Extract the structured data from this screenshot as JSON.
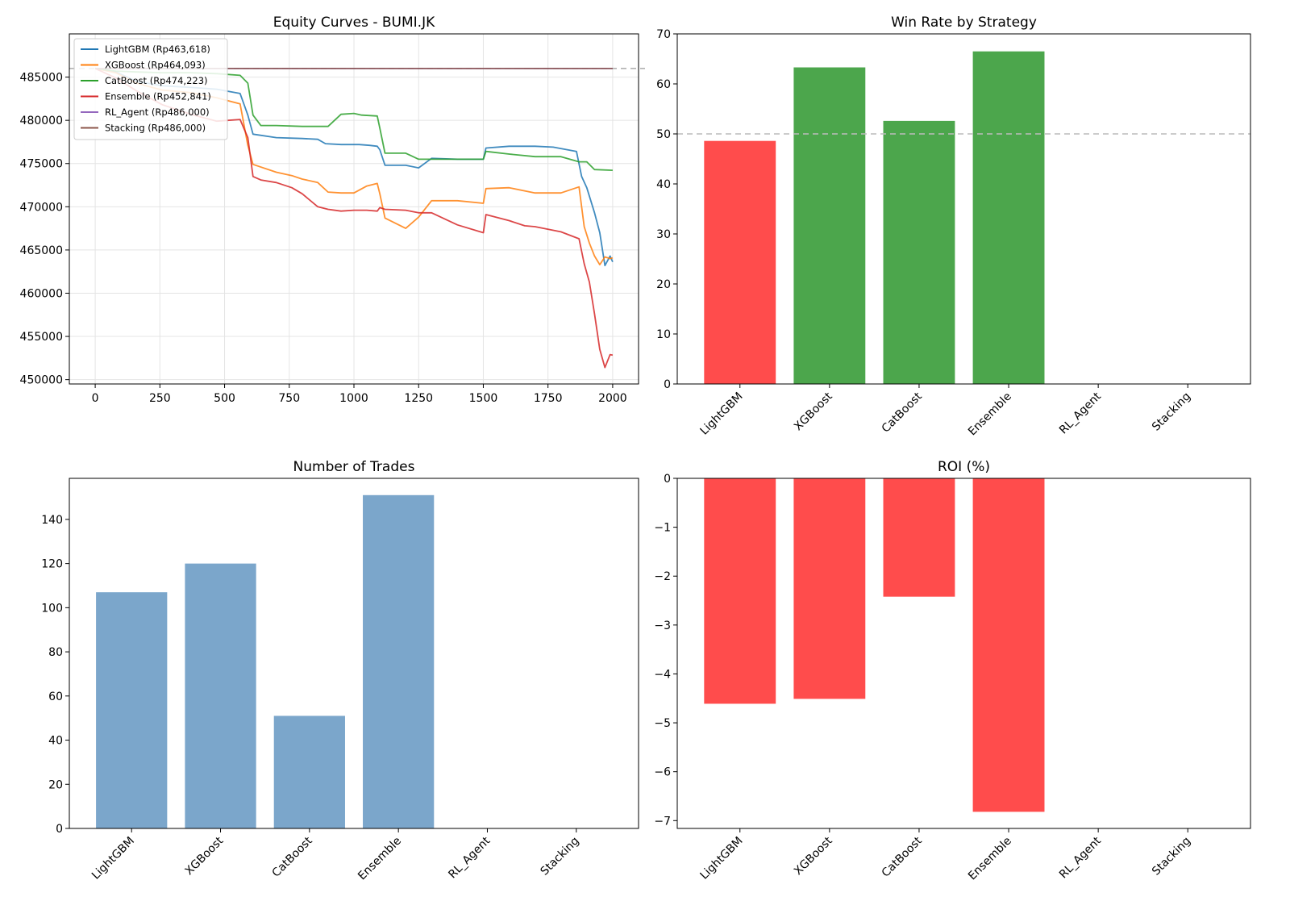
{
  "chart_data": [
    {
      "type": "line",
      "title": "Equity Curves - BUMI.JK",
      "xlabel": "",
      "ylabel": "",
      "xlim": [
        -100,
        2100
      ],
      "ylim": [
        449500,
        490000
      ],
      "xticks": [
        0,
        250,
        500,
        750,
        1000,
        1250,
        1500,
        1750,
        2000
      ],
      "yticks": [
        450000,
        455000,
        460000,
        465000,
        470000,
        475000,
        480000,
        485000
      ],
      "grid": true,
      "legend_position": "upper-left",
      "reference_line": {
        "y": 486000,
        "style": "dashed",
        "color": "#aaaaaa"
      },
      "series": [
        {
          "name": "LightGBM (Rp463,618)",
          "color": "#1f77b4",
          "points": [
            [
              0,
              486000
            ],
            [
              80,
              485600
            ],
            [
              160,
              484500
            ],
            [
              260,
              484000
            ],
            [
              370,
              483800
            ],
            [
              470,
              483600
            ],
            [
              560,
              483100
            ],
            [
              590,
              480600
            ],
            [
              610,
              478400
            ],
            [
              700,
              478000
            ],
            [
              800,
              477900
            ],
            [
              860,
              477800
            ],
            [
              890,
              477300
            ],
            [
              950,
              477200
            ],
            [
              1020,
              477200
            ],
            [
              1060,
              477100
            ],
            [
              1090,
              477000
            ],
            [
              1100,
              476600
            ],
            [
              1120,
              474800
            ],
            [
              1200,
              474800
            ],
            [
              1250,
              474500
            ],
            [
              1300,
              475600
            ],
            [
              1400,
              475500
            ],
            [
              1500,
              475500
            ],
            [
              1510,
              476800
            ],
            [
              1600,
              477000
            ],
            [
              1700,
              477000
            ],
            [
              1770,
              476900
            ],
            [
              1860,
              476400
            ],
            [
              1880,
              473500
            ],
            [
              1900,
              472200
            ],
            [
              1930,
              469300
            ],
            [
              1950,
              467000
            ],
            [
              1970,
              463200
            ],
            [
              1990,
              464300
            ],
            [
              2000,
              463618
            ]
          ]
        },
        {
          "name": "XGBoost (Rp464,093)",
          "color": "#ff7f0e",
          "points": [
            [
              0,
              486000
            ],
            [
              80,
              485500
            ],
            [
              160,
              484300
            ],
            [
              260,
              483500
            ],
            [
              370,
              483200
            ],
            [
              470,
              482600
            ],
            [
              560,
              481900
            ],
            [
              590,
              477100
            ],
            [
              610,
              474900
            ],
            [
              700,
              474000
            ],
            [
              760,
              473600
            ],
            [
              800,
              473200
            ],
            [
              860,
              472800
            ],
            [
              900,
              471700
            ],
            [
              950,
              471600
            ],
            [
              1000,
              471600
            ],
            [
              1050,
              472400
            ],
            [
              1090,
              472700
            ],
            [
              1100,
              471500
            ],
            [
              1120,
              468700
            ],
            [
              1200,
              467500
            ],
            [
              1250,
              468800
            ],
            [
              1300,
              470700
            ],
            [
              1400,
              470700
            ],
            [
              1500,
              470400
            ],
            [
              1510,
              472100
            ],
            [
              1600,
              472200
            ],
            [
              1700,
              471600
            ],
            [
              1800,
              471600
            ],
            [
              1870,
              472300
            ],
            [
              1890,
              467700
            ],
            [
              1910,
              465800
            ],
            [
              1930,
              464300
            ],
            [
              1950,
              463300
            ],
            [
              1970,
              464200
            ],
            [
              1990,
              464000
            ],
            [
              2000,
              464093
            ]
          ]
        },
        {
          "name": "CatBoost (Rp474,223)",
          "color": "#2ca02c",
          "points": [
            [
              0,
              486000
            ],
            [
              80,
              485700
            ],
            [
              160,
              485600
            ],
            [
              260,
              485500
            ],
            [
              370,
              485500
            ],
            [
              470,
              485400
            ],
            [
              560,
              485200
            ],
            [
              590,
              484300
            ],
            [
              610,
              480600
            ],
            [
              640,
              479400
            ],
            [
              700,
              479400
            ],
            [
              800,
              479300
            ],
            [
              900,
              479300
            ],
            [
              950,
              480700
            ],
            [
              1000,
              480800
            ],
            [
              1030,
              480600
            ],
            [
              1090,
              480500
            ],
            [
              1100,
              479100
            ],
            [
              1120,
              476200
            ],
            [
              1200,
              476200
            ],
            [
              1250,
              475500
            ],
            [
              1300,
              475500
            ],
            [
              1400,
              475500
            ],
            [
              1500,
              475500
            ],
            [
              1510,
              476400
            ],
            [
              1600,
              476100
            ],
            [
              1700,
              475800
            ],
            [
              1800,
              475800
            ],
            [
              1870,
              475200
            ],
            [
              1900,
              475200
            ],
            [
              1930,
              474300
            ],
            [
              2000,
              474223
            ]
          ]
        },
        {
          "name": "Ensemble (Rp452,841)",
          "color": "#d62728",
          "points": [
            [
              0,
              486000
            ],
            [
              80,
              484900
            ],
            [
              160,
              483400
            ],
            [
              260,
              481800
            ],
            [
              370,
              480700
            ],
            [
              470,
              479900
            ],
            [
              560,
              480100
            ],
            [
              590,
              478000
            ],
            [
              610,
              473500
            ],
            [
              640,
              473100
            ],
            [
              700,
              472800
            ],
            [
              760,
              472200
            ],
            [
              800,
              471500
            ],
            [
              860,
              470000
            ],
            [
              900,
              469700
            ],
            [
              950,
              469500
            ],
            [
              1000,
              469600
            ],
            [
              1050,
              469600
            ],
            [
              1090,
              469500
            ],
            [
              1100,
              469900
            ],
            [
              1120,
              469700
            ],
            [
              1200,
              469600
            ],
            [
              1250,
              469300
            ],
            [
              1300,
              469300
            ],
            [
              1400,
              467900
            ],
            [
              1500,
              467000
            ],
            [
              1510,
              469100
            ],
            [
              1600,
              468400
            ],
            [
              1660,
              467800
            ],
            [
              1700,
              467700
            ],
            [
              1800,
              467100
            ],
            [
              1870,
              466300
            ],
            [
              1890,
              463400
            ],
            [
              1910,
              461300
            ],
            [
              1930,
              457600
            ],
            [
              1950,
              453500
            ],
            [
              1970,
              451400
            ],
            [
              1990,
              452900
            ],
            [
              2000,
              452841
            ]
          ]
        },
        {
          "name": "RL_Agent (Rp486,000)",
          "color": "#9467bd",
          "points": [
            [
              0,
              486000
            ],
            [
              2000,
              486000
            ]
          ]
        },
        {
          "name": "Stacking (Rp486,000)",
          "color": "#8c564b",
          "points": [
            [
              0,
              486000
            ],
            [
              2000,
              486000
            ]
          ]
        }
      ]
    },
    {
      "type": "bar",
      "title": "Win Rate by Strategy",
      "xlabel": "",
      "ylabel": "",
      "categories": [
        "LightGBM",
        "XGBoost",
        "CatBoost",
        "Ensemble",
        "RL_Agent",
        "Stacking"
      ],
      "values": [
        48.6,
        63.3,
        52.6,
        66.5,
        0,
        0
      ],
      "colors": [
        "#ff4c4c",
        "#4ca64c",
        "#4ca64c",
        "#4ca64c",
        "#4ca64c",
        "#4ca64c"
      ],
      "ylim": [
        0,
        70
      ],
      "yticks": [
        0,
        10,
        20,
        30,
        40,
        50,
        60,
        70
      ],
      "reference_line": {
        "y": 50,
        "style": "dashed",
        "color": "#bbbbbb"
      }
    },
    {
      "type": "bar",
      "title": "Number of Trades",
      "xlabel": "",
      "ylabel": "",
      "categories": [
        "LightGBM",
        "XGBoost",
        "CatBoost",
        "Ensemble",
        "RL_Agent",
        "Stacking"
      ],
      "values": [
        107,
        120,
        51,
        151,
        0,
        0
      ],
      "colors": [
        "#7ba6cb",
        "#7ba6cb",
        "#7ba6cb",
        "#7ba6cb",
        "#7ba6cb",
        "#7ba6cb"
      ],
      "ylim": [
        0,
        158.6
      ],
      "yticks": [
        0,
        20,
        40,
        60,
        80,
        100,
        120,
        140
      ]
    },
    {
      "type": "bar",
      "title": "ROI (%)",
      "xlabel": "",
      "ylabel": "",
      "categories": [
        "LightGBM",
        "XGBoost",
        "CatBoost",
        "Ensemble",
        "RL_Agent",
        "Stacking"
      ],
      "values": [
        -4.61,
        -4.51,
        -2.42,
        -6.82,
        0,
        0
      ],
      "colors": [
        "#ff4c4c",
        "#ff4c4c",
        "#ff4c4c",
        "#ff4c4c",
        "#ff4c4c",
        "#ff4c4c"
      ],
      "ylim": [
        -7.16,
        0
      ],
      "yticks": [
        -7,
        -6,
        -5,
        -4,
        -3,
        -2,
        -1,
        0
      ]
    }
  ]
}
